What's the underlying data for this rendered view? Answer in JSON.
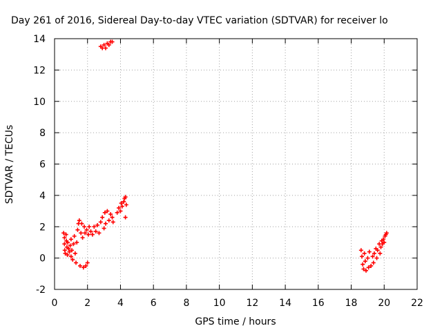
{
  "chart_data": {
    "type": "scatter",
    "title": "Day 261 of 2016, Sidereal Day-to-day VTEC variation (SDTVAR) for receiver lo",
    "xlabel": "GPS time / hours",
    "ylabel": "SDTVAR / TECUs",
    "xlim": [
      0,
      22
    ],
    "ylim": [
      -2,
      14
    ],
    "xticks": [
      "0",
      "2",
      "4",
      "6",
      "8",
      "10",
      "12",
      "14",
      "16",
      "18",
      "20",
      "22"
    ],
    "yticks": [
      "-2",
      "0",
      "2",
      "4",
      "6",
      "8",
      "10",
      "12",
      "14"
    ],
    "grid": true,
    "marker": "+",
    "colors": {
      "series": "#ff0000",
      "grid": "#a0a0a0",
      "axes": "#000000"
    },
    "series": [
      {
        "points": [
          [
            0.55,
            1.6
          ],
          [
            0.6,
            1.3
          ],
          [
            0.6,
            0.9
          ],
          [
            0.62,
            0.5
          ],
          [
            0.65,
            0.3
          ],
          [
            0.7,
            1.5
          ],
          [
            0.72,
            1.1
          ],
          [
            0.75,
            0.7
          ],
          [
            0.78,
            0.2
          ],
          [
            0.8,
            1.0
          ],
          [
            0.85,
            0.6
          ],
          [
            0.9,
            0.4
          ],
          [
            0.95,
            0.8
          ],
          [
            1.0,
            1.2
          ],
          [
            1.0,
            0.1
          ],
          [
            1.05,
            0.5
          ],
          [
            1.1,
            -0.1
          ],
          [
            1.15,
            0.9
          ],
          [
            1.2,
            1.4
          ],
          [
            1.25,
            0.3
          ],
          [
            1.3,
            -0.3
          ],
          [
            1.35,
            1.0
          ],
          [
            1.4,
            1.8
          ],
          [
            1.45,
            2.2
          ],
          [
            1.5,
            2.4
          ],
          [
            1.55,
            -0.5
          ],
          [
            1.6,
            1.6
          ],
          [
            1.65,
            2.2
          ],
          [
            1.7,
            1.3
          ],
          [
            1.75,
            -0.6
          ],
          [
            1.8,
            2.0
          ],
          [
            1.85,
            1.6
          ],
          [
            1.9,
            -0.5
          ],
          [
            1.95,
            1.8
          ],
          [
            2.0,
            -0.3
          ],
          [
            2.05,
            1.5
          ],
          [
            2.1,
            2.0
          ],
          [
            2.2,
            1.7
          ],
          [
            2.3,
            1.5
          ],
          [
            2.4,
            2.0
          ],
          [
            2.5,
            1.7
          ],
          [
            2.6,
            2.1
          ],
          [
            2.7,
            1.6
          ],
          [
            2.8,
            2.3
          ],
          [
            2.9,
            2.6
          ],
          [
            3.0,
            1.9
          ],
          [
            3.05,
            2.9
          ],
          [
            3.1,
            2.2
          ],
          [
            3.2,
            3.0
          ],
          [
            3.3,
            2.4
          ],
          [
            3.4,
            2.8
          ],
          [
            3.5,
            2.6
          ],
          [
            3.55,
            2.3
          ],
          [
            3.8,
            2.9
          ],
          [
            3.9,
            3.2
          ],
          [
            4.0,
            3.0
          ],
          [
            4.05,
            3.5
          ],
          [
            4.1,
            3.3
          ],
          [
            4.2,
            3.6
          ],
          [
            4.25,
            3.8
          ],
          [
            4.3,
            3.9
          ],
          [
            4.35,
            3.4
          ],
          [
            4.3,
            2.6
          ],
          [
            2.8,
            13.5
          ],
          [
            2.9,
            13.4
          ],
          [
            3.0,
            13.6
          ],
          [
            3.1,
            13.4
          ],
          [
            3.2,
            13.7
          ],
          [
            3.3,
            13.6
          ],
          [
            3.4,
            13.8
          ],
          [
            3.5,
            13.8
          ],
          [
            18.6,
            0.5
          ],
          [
            18.65,
            0.1
          ],
          [
            18.7,
            -0.4
          ],
          [
            18.75,
            -0.7
          ],
          [
            18.8,
            0.3
          ],
          [
            18.85,
            -0.2
          ],
          [
            18.9,
            -0.8
          ],
          [
            19.0,
            0.0
          ],
          [
            19.05,
            -0.6
          ],
          [
            19.1,
            0.4
          ],
          [
            19.2,
            -0.5
          ],
          [
            19.3,
            0.1
          ],
          [
            19.35,
            -0.3
          ],
          [
            19.4,
            0.3
          ],
          [
            19.5,
            0.6
          ],
          [
            19.55,
            0.0
          ],
          [
            19.6,
            0.5
          ],
          [
            19.7,
            0.9
          ],
          [
            19.75,
            0.3
          ],
          [
            19.8,
            0.7
          ],
          [
            19.85,
            1.1
          ],
          [
            19.9,
            0.9
          ],
          [
            19.95,
            1.2
          ],
          [
            20.0,
            1.0
          ],
          [
            20.05,
            1.4
          ],
          [
            20.1,
            1.5
          ],
          [
            20.15,
            1.6
          ]
        ]
      }
    ]
  }
}
